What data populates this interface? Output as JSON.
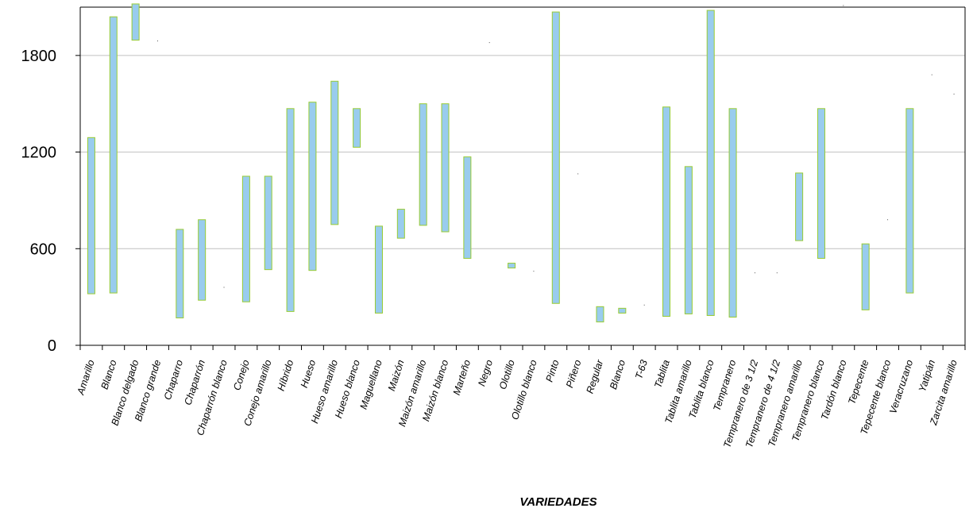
{
  "chart_data": {
    "type": "floating-bar",
    "xlabel": "VARIEDADES",
    "ylabel": "",
    "ylim": [
      0,
      2100
    ],
    "yticks": [
      0,
      600,
      1200,
      1800
    ],
    "grid": true,
    "colors": {
      "fill": "#99ccee",
      "stroke": "#99cc33",
      "grid": "#c0c0c0"
    },
    "categories": [
      "Amarillo",
      "Blanco",
      "Blanco delgado",
      "Blanco grande",
      "Chaparro",
      "Chaparrón",
      "Chaparrón blanco",
      "Conejo",
      "Conejo amarillo",
      "Híbrido",
      "Hueso",
      "Hueso amarillo",
      "Hueso blanco",
      "Maguellano",
      "Maizón",
      "Maizón amarillo",
      "Maizón blanco",
      "Marteño",
      "Negro",
      "Olotillo",
      "Olotillo blanco",
      "Pinto",
      "Piñero",
      "Regular",
      "Blanco",
      "T-63",
      "Tablita",
      "Tablita amarillo",
      "Tablita blanco",
      "Tempranero",
      "Tempranero de 3 1/2",
      "Tempranero de 4 1/2",
      "Tempranero amarillo",
      "Tempranero blanco",
      "Tardón blanco",
      "Tepecente",
      "Tepecente blanco",
      "Veracruzano",
      "Yatipán",
      "Zarcita amarillo"
    ],
    "low": [
      320,
      325,
      1895,
      1890,
      170,
      280,
      360,
      270,
      470,
      210,
      465,
      750,
      1230,
      200,
      665,
      745,
      705,
      540,
      1880,
      480,
      460,
      260,
      1065,
      145,
      200,
      250,
      180,
      195,
      185,
      175,
      450,
      450,
      650,
      540,
      2110,
      220,
      780,
      325,
      1680,
      1560
    ],
    "high": [
      1290,
      2040,
      2120,
      1890,
      720,
      780,
      360,
      1050,
      1050,
      1470,
      1510,
      1640,
      1470,
      740,
      845,
      1500,
      1500,
      1170,
      1880,
      510,
      460,
      2070,
      1065,
      240,
      230,
      250,
      1480,
      1110,
      2080,
      1470,
      450,
      450,
      1070,
      1470,
      2110,
      630,
      780,
      1470,
      1680,
      1560
    ]
  }
}
